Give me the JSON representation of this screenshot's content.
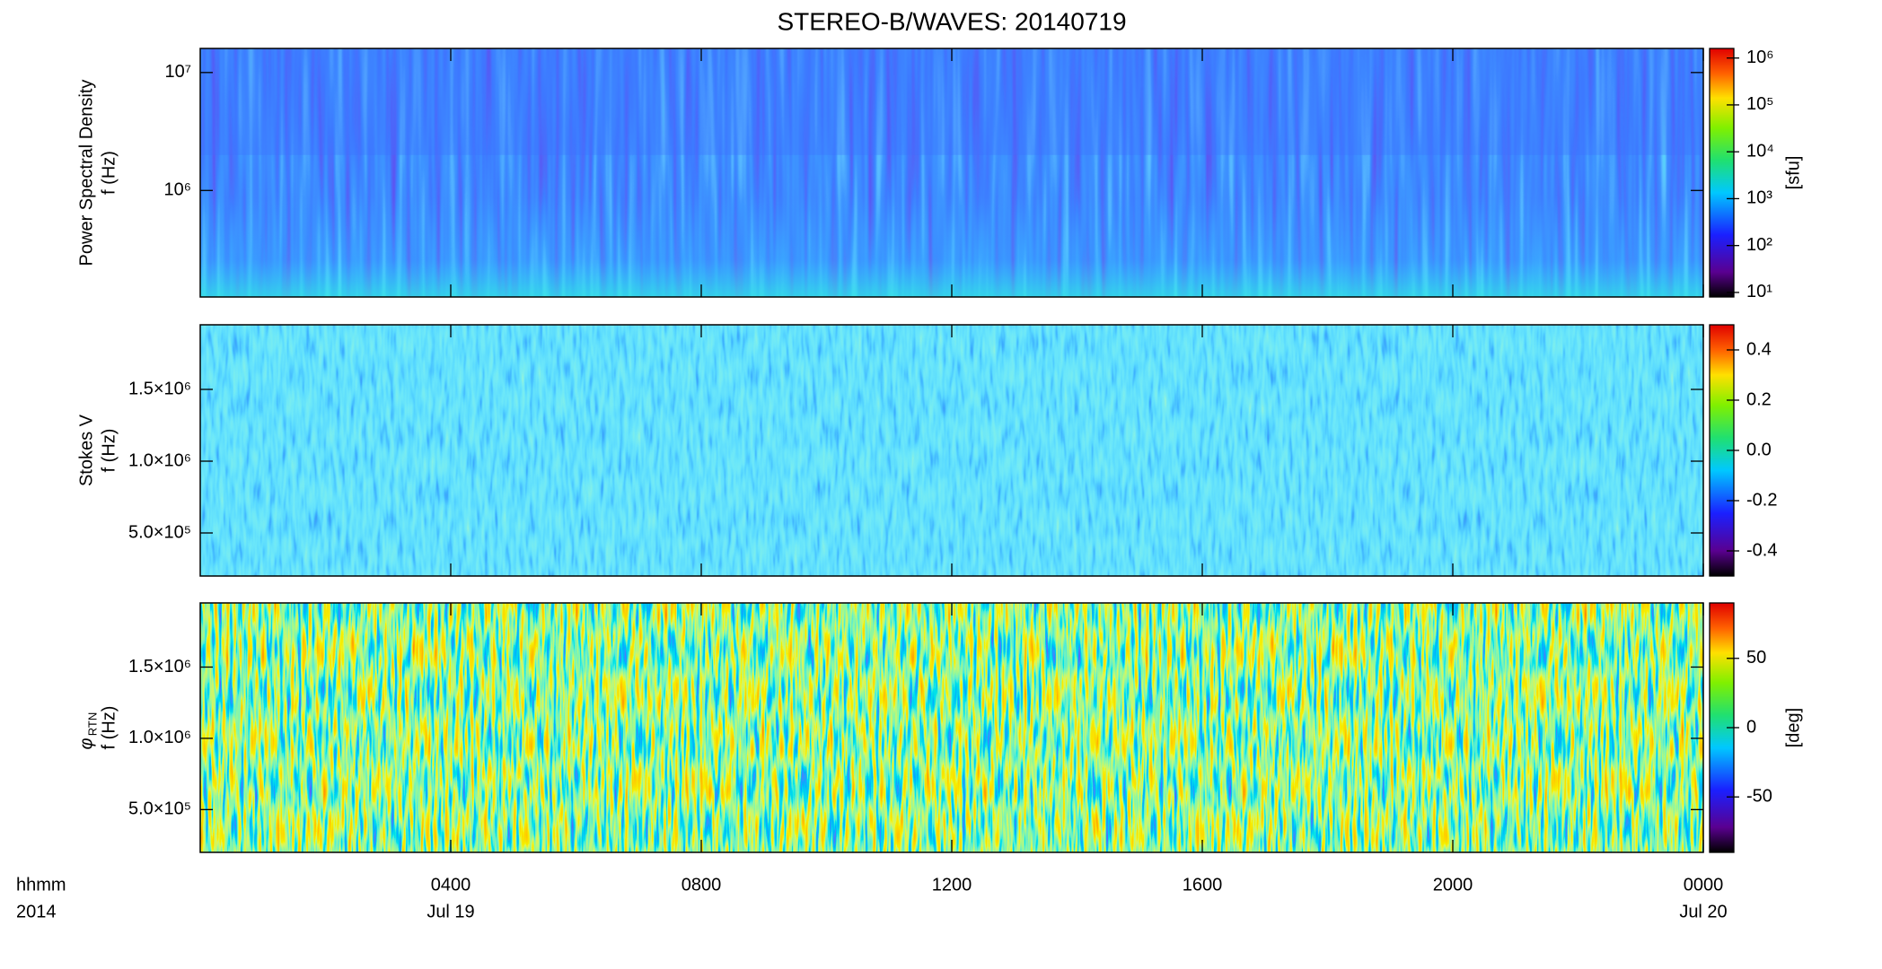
{
  "title": "STEREO-B/WAVES: 20140719",
  "x_axis": {
    "xlim": [
      0,
      24
    ],
    "xticks": [
      {
        "value": 4,
        "label": "0400"
      },
      {
        "value": 8,
        "label": "0800"
      },
      {
        "value": 12,
        "label": "1200"
      },
      {
        "value": 16,
        "label": "1600"
      },
      {
        "value": 20,
        "label": "2000"
      },
      {
        "value": 24,
        "label": "0000"
      }
    ],
    "date_labels": [
      {
        "value": 4,
        "label": "Jul 19"
      },
      {
        "value": 24,
        "label": "Jul 20"
      }
    ],
    "format_label": "hhmm",
    "year_label": "2014"
  },
  "chart_data": [
    {
      "type": "spectrogram",
      "ylabel": "Power Spectral Density",
      "ylabel2": "f (Hz)",
      "log": true,
      "ylim": [
        125000,
        16000000
      ],
      "yticks": [
        {
          "value": 1000000,
          "label": "10⁶"
        },
        {
          "value": 10000000,
          "label": "10⁷"
        }
      ],
      "clog": true,
      "clim": [
        8,
        1600000
      ],
      "cticks": [
        {
          "value": 10,
          "label": "10¹"
        },
        {
          "value": 100,
          "label": "10²"
        },
        {
          "value": 1000,
          "label": "10³"
        },
        {
          "value": 10000,
          "label": "10⁴"
        },
        {
          "value": 100000,
          "label": "10⁵"
        },
        {
          "value": 1000000,
          "label": "10⁶"
        }
      ],
      "colorbar_label": "[sfu]"
    },
    {
      "type": "spectrogram",
      "ylabel": "Stokes V",
      "ylabel2": "f (Hz)",
      "log": false,
      "ylim": [
        200000,
        1950000
      ],
      "yticks": [
        {
          "value": 500000,
          "label": "5.0×10⁵"
        },
        {
          "value": 1000000,
          "label": "1.0×10⁶"
        },
        {
          "value": 1500000,
          "label": "1.5×10⁶"
        }
      ],
      "clog": false,
      "clim": [
        -0.5,
        0.5
      ],
      "cticks": [
        -0.4,
        -0.2,
        {
          "value": 0,
          "label": "0.0"
        },
        0.2,
        0.4
      ]
    },
    {
      "type": "spectrogram",
      "ylabel": "φ",
      "ylabel_subscript": "RTN",
      "ylabel2": "f (Hz)",
      "log": false,
      "ylim": [
        200000,
        1950000
      ],
      "yticks": [
        {
          "value": 500000,
          "label": "5.0×10⁵"
        },
        {
          "value": 1000000,
          "label": "1.0×10⁶"
        },
        {
          "value": 1500000,
          "label": "1.5×10⁶"
        }
      ],
      "clog": false,
      "clim": [
        -90,
        90
      ],
      "cticks": [
        -50,
        0,
        50
      ],
      "colorbar_label": "[deg]"
    }
  ]
}
